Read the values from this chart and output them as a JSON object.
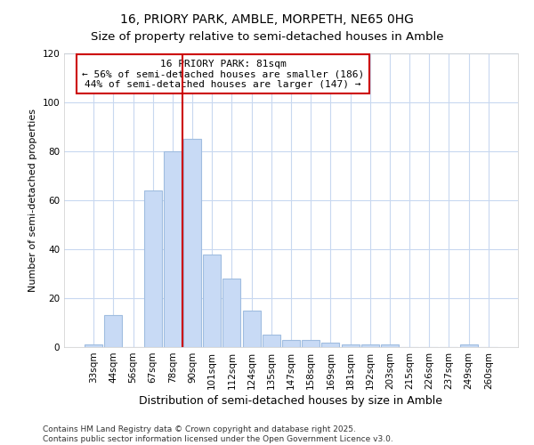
{
  "title": "16, PRIORY PARK, AMBLE, MORPETH, NE65 0HG",
  "subtitle": "Size of property relative to semi-detached houses in Amble",
  "xlabel": "Distribution of semi-detached houses by size in Amble",
  "ylabel": "Number of semi-detached properties",
  "categories": [
    "33sqm",
    "44sqm",
    "56sqm",
    "67sqm",
    "78sqm",
    "90sqm",
    "101sqm",
    "112sqm",
    "124sqm",
    "135sqm",
    "147sqm",
    "158sqm",
    "169sqm",
    "181sqm",
    "192sqm",
    "203sqm",
    "215sqm",
    "226sqm",
    "237sqm",
    "249sqm",
    "260sqm"
  ],
  "values": [
    1,
    13,
    0,
    64,
    80,
    85,
    38,
    28,
    15,
    5,
    3,
    3,
    2,
    1,
    1,
    1,
    0,
    0,
    0,
    1,
    0
  ],
  "bar_color": "#c8daf5",
  "bar_edge_color": "#a0bde0",
  "vline_color": "#cc0000",
  "vline_x": 4.5,
  "annotation_title": "16 PRIORY PARK: 81sqm",
  "annotation_line1": "← 56% of semi-detached houses are smaller (186)",
  "annotation_line2": "44% of semi-detached houses are larger (147) →",
  "annotation_box_color": "#ffffff",
  "annotation_box_edge_color": "#cc0000",
  "ylim": [
    0,
    120
  ],
  "yticks": [
    0,
    20,
    40,
    60,
    80,
    100,
    120
  ],
  "background_color": "#ffffff",
  "grid_color": "#c8d8f0",
  "footer_line1": "Contains HM Land Registry data © Crown copyright and database right 2025.",
  "footer_line2": "Contains public sector information licensed under the Open Government Licence v3.0.",
  "title_fontsize": 10,
  "subtitle_fontsize": 9.5,
  "xlabel_fontsize": 9,
  "ylabel_fontsize": 8,
  "tick_fontsize": 7.5,
  "annotation_fontsize": 8,
  "footer_fontsize": 6.5
}
